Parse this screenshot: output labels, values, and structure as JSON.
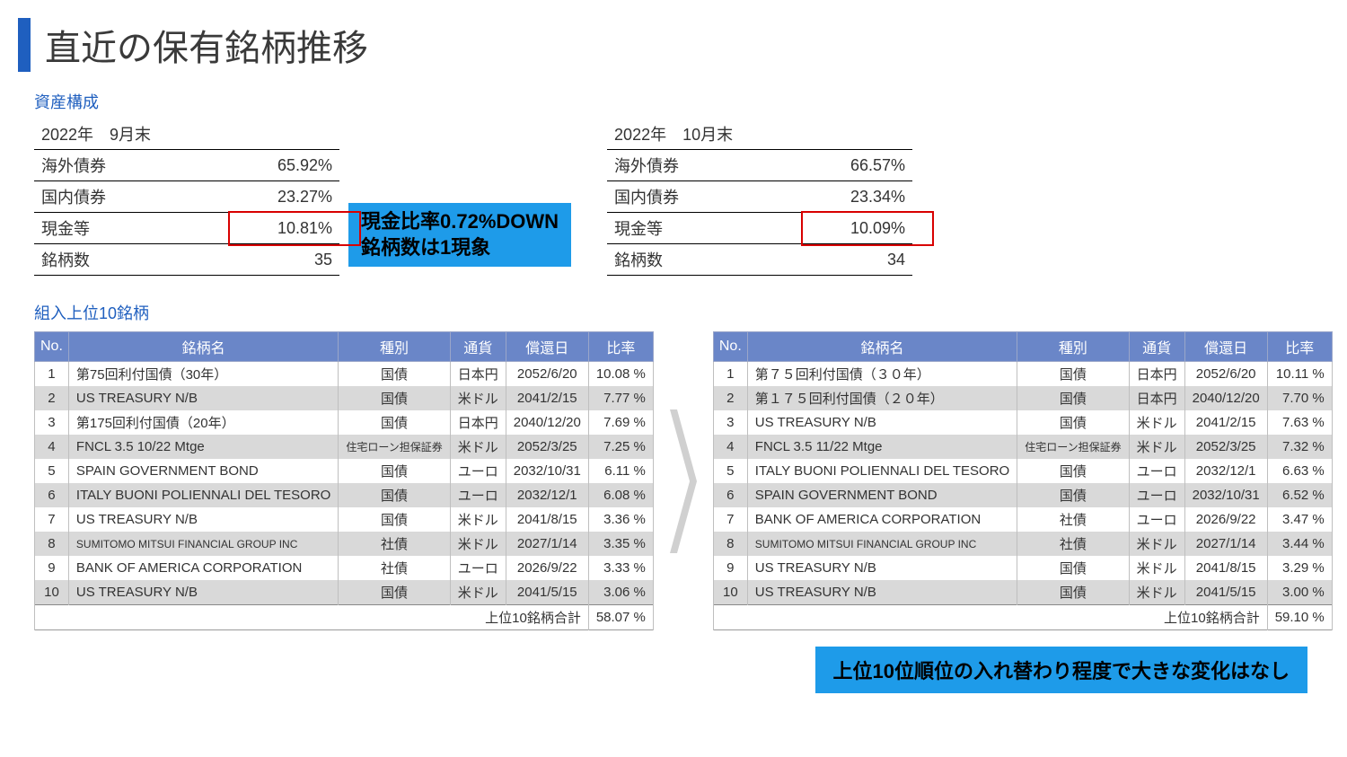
{
  "title": "直近の保有銘柄推移",
  "section_composition_label": "資産構成",
  "section_holdings_label": "組入上位10銘柄",
  "colors": {
    "accent_blue": "#1f5fbf",
    "callout_bg": "#1e9be9",
    "table_header_bg": "#6a86c8",
    "red_highlight": "#d80000",
    "zebra_even": "#d9d9d9"
  },
  "composition_left": {
    "period": "2022年　9月末",
    "rows": [
      {
        "label": "海外債券",
        "value": "65.92%"
      },
      {
        "label": "国内債券",
        "value": "23.27%"
      },
      {
        "label": "現金等",
        "value": "10.81%"
      },
      {
        "label": "銘柄数",
        "value": "35"
      }
    ]
  },
  "composition_right": {
    "period": "2022年　10月末",
    "rows": [
      {
        "label": "海外債券",
        "value": "66.57%"
      },
      {
        "label": "国内債券",
        "value": "23.34%"
      },
      {
        "label": "現金等",
        "value": "10.09%"
      },
      {
        "label": "銘柄数",
        "value": "34"
      }
    ]
  },
  "callout_mid": {
    "line1": "現金比率0.72%DOWN",
    "line2": "銘柄数は1現象"
  },
  "holdings_headers": {
    "no": "No.",
    "name": "銘柄名",
    "type": "種別",
    "ccy": "通貨",
    "date": "償還日",
    "ratio": "比率"
  },
  "holdings_left": {
    "rows": [
      {
        "no": "1",
        "name": "第75回利付国債（30年）",
        "type": "国債",
        "ccy": "日本円",
        "date": "2052/6/20",
        "ratio": "10.08 %"
      },
      {
        "no": "2",
        "name": "US TREASURY N/B",
        "type": "国債",
        "ccy": "米ドル",
        "date": "2041/2/15",
        "ratio": "7.77 %"
      },
      {
        "no": "3",
        "name": "第175回利付国債（20年）",
        "type": "国債",
        "ccy": "日本円",
        "date": "2040/12/20",
        "ratio": "7.69 %"
      },
      {
        "no": "4",
        "name": "FNCL 3.5 10/22 Mtge",
        "type": "住宅ローン担保証券",
        "type_small": true,
        "ccy": "米ドル",
        "date": "2052/3/25",
        "ratio": "7.25 %"
      },
      {
        "no": "5",
        "name": "SPAIN GOVERNMENT BOND",
        "type": "国債",
        "ccy": "ユーロ",
        "date": "2032/10/31",
        "ratio": "6.11 %"
      },
      {
        "no": "6",
        "name": "ITALY BUONI POLIENNALI DEL TESORO",
        "type": "国債",
        "ccy": "ユーロ",
        "date": "2032/12/1",
        "ratio": "6.08 %"
      },
      {
        "no": "7",
        "name": "US TREASURY N/B",
        "type": "国債",
        "ccy": "米ドル",
        "date": "2041/8/15",
        "ratio": "3.36 %"
      },
      {
        "no": "8",
        "name": "SUMITOMO MITSUI FINANCIAL GROUP INC",
        "name_small": true,
        "type": "社債",
        "ccy": "米ドル",
        "date": "2027/1/14",
        "ratio": "3.35 %"
      },
      {
        "no": "9",
        "name": "BANK OF AMERICA CORPORATION",
        "type": "社債",
        "ccy": "ユーロ",
        "date": "2026/9/22",
        "ratio": "3.33 %"
      },
      {
        "no": "10",
        "name": "US TREASURY N/B",
        "type": "国債",
        "ccy": "米ドル",
        "date": "2041/5/15",
        "ratio": "3.06 %"
      }
    ],
    "total_label": "上位10銘柄合計",
    "total_value": "58.07 %"
  },
  "holdings_right": {
    "rows": [
      {
        "no": "1",
        "name": "第７５回利付国債（３０年）",
        "type": "国債",
        "ccy": "日本円",
        "date": "2052/6/20",
        "ratio": "10.11 %"
      },
      {
        "no": "2",
        "name": "第１７５回利付国債（２０年）",
        "type": "国債",
        "ccy": "日本円",
        "date": "2040/12/20",
        "ratio": "7.70 %"
      },
      {
        "no": "3",
        "name": "US TREASURY N/B",
        "type": "国債",
        "ccy": "米ドル",
        "date": "2041/2/15",
        "ratio": "7.63 %"
      },
      {
        "no": "4",
        "name": "FNCL 3.5 11/22 Mtge",
        "type": "住宅ローン担保証券",
        "type_small": true,
        "ccy": "米ドル",
        "date": "2052/3/25",
        "ratio": "7.32 %"
      },
      {
        "no": "5",
        "name": "ITALY BUONI POLIENNALI DEL TESORO",
        "type": "国債",
        "ccy": "ユーロ",
        "date": "2032/12/1",
        "ratio": "6.63 %"
      },
      {
        "no": "6",
        "name": "SPAIN GOVERNMENT BOND",
        "type": "国債",
        "ccy": "ユーロ",
        "date": "2032/10/31",
        "ratio": "6.52 %"
      },
      {
        "no": "7",
        "name": "BANK OF AMERICA CORPORATION",
        "type": "社債",
        "ccy": "ユーロ",
        "date": "2026/9/22",
        "ratio": "3.47 %"
      },
      {
        "no": "8",
        "name": "SUMITOMO MITSUI FINANCIAL GROUP INC",
        "name_small": true,
        "type": "社債",
        "ccy": "米ドル",
        "date": "2027/1/14",
        "ratio": "3.44 %"
      },
      {
        "no": "9",
        "name": "US TREASURY N/B",
        "type": "国債",
        "ccy": "米ドル",
        "date": "2041/8/15",
        "ratio": "3.29 %"
      },
      {
        "no": "10",
        "name": "US TREASURY N/B",
        "type": "国債",
        "ccy": "米ドル",
        "date": "2041/5/15",
        "ratio": "3.00 %"
      }
    ],
    "total_label": "上位10銘柄合計",
    "total_value": "59.10 %"
  },
  "callout_bottom": "上位10位順位の入れ替わり程度で大きな変化はなし"
}
